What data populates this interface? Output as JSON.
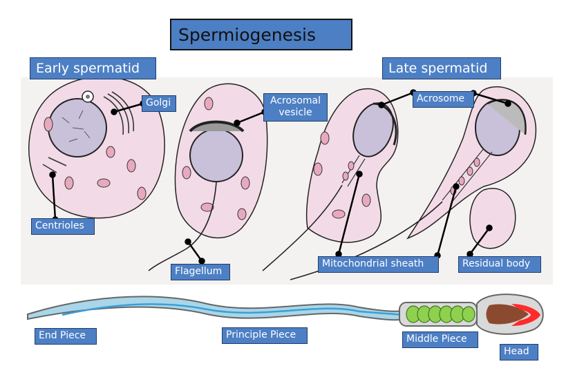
{
  "title": "Spermiogenesis",
  "sections": {
    "early": "Early spermatid",
    "late": "Late spermatid"
  },
  "labels": {
    "golgi": "Golgi",
    "acrosomal_vesicle_line1": "Acrosomal",
    "acrosomal_vesicle_line2": "vesicle",
    "acrosome": "Acrosome",
    "centrioles": "Centrioles",
    "flagellum": "Flagellum",
    "mitochondrial_sheath": "Mitochondrial sheath",
    "residual_body": "Residual body"
  },
  "sperm_parts": {
    "end_piece": "End Piece",
    "principle_piece": "Principle Piece",
    "middle_piece": "Middle Piece",
    "head": "Head"
  },
  "colors": {
    "label_bg": "#4d7fc4",
    "cell_fill": "#f2dbe6",
    "nucleus_fill": "#c9c0d9",
    "tail_fill": "#a9d6e8",
    "midpiece_fill": "#8fd14f",
    "head_fill": "#8b4a2f",
    "acrosome_cap": "#ff2a2a"
  }
}
